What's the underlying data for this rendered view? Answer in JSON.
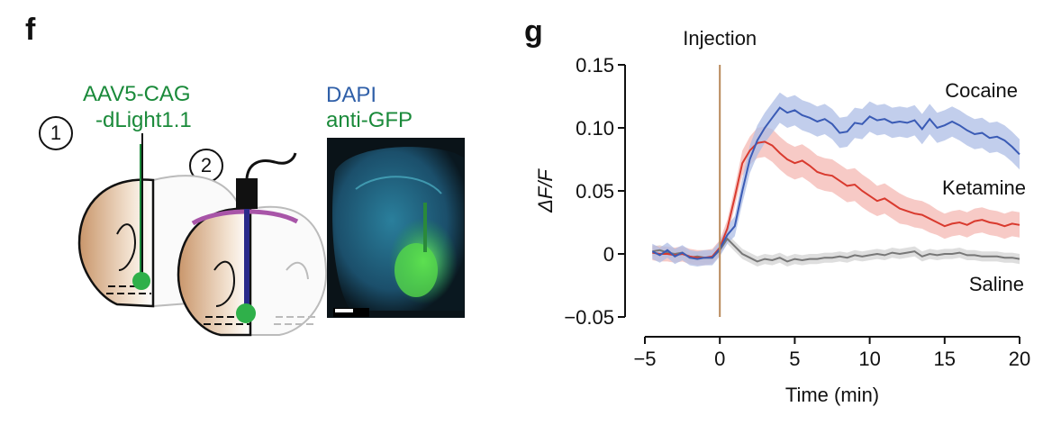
{
  "panel_f": {
    "letter": "f",
    "virus_line1": "AAV5-CAG",
    "virus_line2": "-dLight1.1",
    "stain_line1": "DAPI",
    "stain_line2": "anti-GFP",
    "step1": "1",
    "step2": "2",
    "colors": {
      "virus": "#1a8a3a",
      "dapi": "#2f5fa8",
      "fiber": "#2a2a8a",
      "tissue": "#d9b48f",
      "cannula": "#a855a8"
    }
  },
  "panel_g": {
    "letter": "g",
    "annotation": "Injection"
  },
  "chart_data": {
    "type": "line",
    "title": "",
    "xlabel": "Time (min)",
    "ylabel": "ΔF/F",
    "xlim": [
      -5,
      20
    ],
    "ylim": [
      -0.05,
      0.15
    ],
    "xticks": [
      -5,
      0,
      5,
      10,
      15,
      20
    ],
    "xtick_labels": [
      "−5",
      "0",
      "5",
      "10",
      "15",
      "20"
    ],
    "yticks": [
      -0.05,
      0,
      0.05,
      0.1,
      0.15
    ],
    "ytick_labels": [
      "−0.05",
      "0",
      "0.05",
      "0.10",
      "0.15"
    ],
    "injection_time": 0,
    "injection_color": "#b8895a",
    "x": [
      -4.5,
      -4,
      -3.5,
      -3,
      -2.5,
      -2,
      -1.5,
      -1,
      -0.5,
      0,
      0.5,
      1,
      1.5,
      2,
      2.5,
      3,
      3.5,
      4,
      4.5,
      5,
      5.5,
      6,
      6.5,
      7,
      7.5,
      8,
      8.5,
      9,
      9.5,
      10,
      10.5,
      11,
      11.5,
      12,
      12.5,
      13,
      13.5,
      14,
      14.5,
      15,
      15.5,
      16,
      16.5,
      17,
      17.5,
      18,
      18.5,
      19,
      19.5,
      20
    ],
    "series": [
      {
        "name": "Cocaine",
        "color": "#3a5bb5",
        "band_color": "#aebde6",
        "values": [
          0.002,
          -0.001,
          0.003,
          -0.002,
          0.001,
          -0.003,
          -0.004,
          -0.003,
          -0.003,
          0.004,
          0.015,
          0.022,
          0.05,
          0.075,
          0.09,
          0.1,
          0.108,
          0.116,
          0.112,
          0.114,
          0.11,
          0.108,
          0.105,
          0.107,
          0.103,
          0.096,
          0.097,
          0.104,
          0.103,
          0.109,
          0.106,
          0.107,
          0.104,
          0.105,
          0.104,
          0.106,
          0.099,
          0.107,
          0.1,
          0.102,
          0.105,
          0.102,
          0.098,
          0.095,
          0.096,
          0.092,
          0.093,
          0.09,
          0.085,
          0.079
        ],
        "band": [
          0.006,
          0.006,
          0.006,
          0.006,
          0.006,
          0.006,
          0.006,
          0.006,
          0.006,
          0.006,
          0.007,
          0.008,
          0.01,
          0.011,
          0.012,
          0.012,
          0.012,
          0.012,
          0.012,
          0.012,
          0.012,
          0.012,
          0.012,
          0.012,
          0.012,
          0.012,
          0.012,
          0.012,
          0.012,
          0.012,
          0.012,
          0.012,
          0.012,
          0.012,
          0.012,
          0.012,
          0.012,
          0.012,
          0.012,
          0.012,
          0.012,
          0.012,
          0.012,
          0.012,
          0.012,
          0.012,
          0.012,
          0.012,
          0.012,
          0.012
        ]
      },
      {
        "name": "Ketamine",
        "color": "#d93a2e",
        "band_color": "#f4b8b3",
        "values": [
          0.001,
          0.0,
          0.0,
          -0.001,
          0.0,
          -0.002,
          -0.003,
          -0.003,
          -0.002,
          0.005,
          0.02,
          0.045,
          0.072,
          0.082,
          0.088,
          0.089,
          0.086,
          0.08,
          0.075,
          0.072,
          0.074,
          0.07,
          0.065,
          0.063,
          0.062,
          0.058,
          0.054,
          0.055,
          0.05,
          0.046,
          0.042,
          0.044,
          0.04,
          0.036,
          0.034,
          0.032,
          0.031,
          0.028,
          0.025,
          0.022,
          0.024,
          0.025,
          0.023,
          0.026,
          0.027,
          0.025,
          0.024,
          0.022,
          0.024,
          0.023
        ],
        "band": [
          0.006,
          0.006,
          0.006,
          0.006,
          0.006,
          0.006,
          0.006,
          0.006,
          0.006,
          0.006,
          0.007,
          0.008,
          0.01,
          0.011,
          0.012,
          0.012,
          0.013,
          0.013,
          0.013,
          0.013,
          0.013,
          0.013,
          0.013,
          0.013,
          0.013,
          0.013,
          0.013,
          0.013,
          0.013,
          0.013,
          0.012,
          0.012,
          0.012,
          0.012,
          0.011,
          0.011,
          0.011,
          0.011,
          0.01,
          0.01,
          0.01,
          0.01,
          0.01,
          0.01,
          0.01,
          0.01,
          0.01,
          0.01,
          0.01,
          0.01
        ]
      },
      {
        "name": "Saline",
        "color": "#777777",
        "band_color": "#d3d3d3",
        "values": [
          0.002,
          0.003,
          0.001,
          0.0,
          0.001,
          -0.003,
          -0.002,
          -0.003,
          -0.003,
          0.003,
          0.012,
          0.006,
          0.0,
          -0.003,
          -0.006,
          -0.004,
          -0.005,
          -0.003,
          -0.006,
          -0.004,
          -0.005,
          -0.004,
          -0.004,
          -0.003,
          -0.003,
          -0.002,
          -0.003,
          -0.001,
          -0.002,
          -0.001,
          0.0,
          -0.001,
          0.001,
          0.0,
          0.001,
          0.002,
          -0.002,
          0.0,
          -0.001,
          0.0,
          0.0,
          0.001,
          -0.001,
          -0.001,
          -0.002,
          -0.002,
          -0.002,
          -0.003,
          -0.003,
          -0.004
        ],
        "band": [
          0.004,
          0.004,
          0.004,
          0.004,
          0.004,
          0.004,
          0.004,
          0.004,
          0.004,
          0.004,
          0.004,
          0.004,
          0.004,
          0.004,
          0.004,
          0.004,
          0.004,
          0.004,
          0.004,
          0.004,
          0.004,
          0.004,
          0.004,
          0.004,
          0.004,
          0.004,
          0.004,
          0.004,
          0.004,
          0.004,
          0.004,
          0.004,
          0.004,
          0.004,
          0.004,
          0.004,
          0.004,
          0.004,
          0.004,
          0.004,
          0.004,
          0.004,
          0.004,
          0.004,
          0.004,
          0.004,
          0.004,
          0.004,
          0.004,
          0.004
        ]
      }
    ]
  }
}
